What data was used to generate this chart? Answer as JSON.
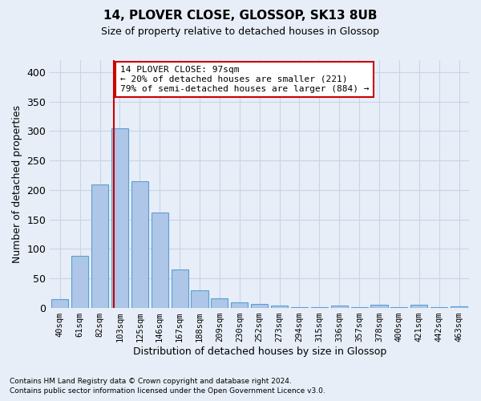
{
  "title": "14, PLOVER CLOSE, GLOSSOP, SK13 8UB",
  "subtitle": "Size of property relative to detached houses in Glossop",
  "xlabel": "Distribution of detached houses by size in Glossop",
  "ylabel": "Number of detached properties",
  "footnote1": "Contains HM Land Registry data © Crown copyright and database right 2024.",
  "footnote2": "Contains public sector information licensed under the Open Government Licence v3.0.",
  "categories": [
    "40sqm",
    "61sqm",
    "82sqm",
    "103sqm",
    "125sqm",
    "146sqm",
    "167sqm",
    "188sqm",
    "209sqm",
    "230sqm",
    "252sqm",
    "273sqm",
    "294sqm",
    "315sqm",
    "336sqm",
    "357sqm",
    "378sqm",
    "400sqm",
    "421sqm",
    "442sqm",
    "463sqm"
  ],
  "values": [
    15,
    88,
    210,
    305,
    215,
    162,
    65,
    30,
    17,
    10,
    7,
    4,
    2,
    2,
    4,
    2,
    5,
    2,
    5,
    2,
    3
  ],
  "bar_color": "#aec6e8",
  "bar_edge_color": "#5a9fd4",
  "bar_edge_width": 0.8,
  "vline_color": "#cc0000",
  "annotation_text": "14 PLOVER CLOSE: 97sqm\n← 20% of detached houses are smaller (221)\n79% of semi-detached houses are larger (884) →",
  "annotation_box_color": "#cc0000",
  "ylim": [
    0,
    420
  ],
  "yticks": [
    0,
    50,
    100,
    150,
    200,
    250,
    300,
    350,
    400
  ],
  "grid_color": "#c8d4e8",
  "background_color": "#e8eef8",
  "title_fontsize": 11,
  "subtitle_fontsize": 9
}
